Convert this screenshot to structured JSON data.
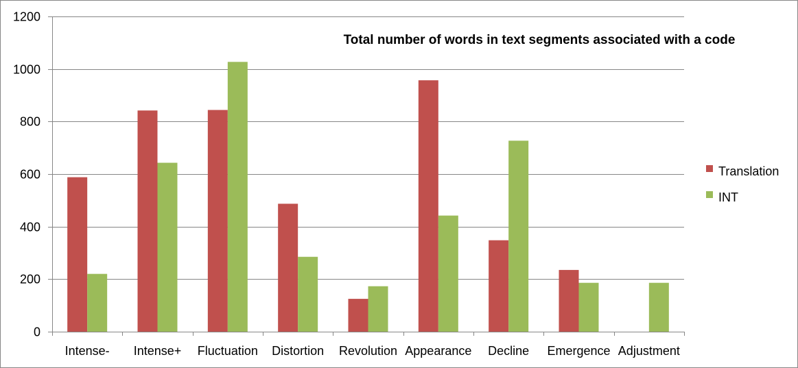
{
  "chart_data": {
    "type": "bar",
    "title": "Total number of words in text segments associated with a code",
    "xlabel": "",
    "ylabel": "",
    "categories": [
      "Intense-",
      "Intense+",
      "Fluctuation",
      "Distortion",
      "Revolution",
      "Appearance",
      "Decline",
      "Emergence",
      "Adjustment"
    ],
    "series": [
      {
        "name": "Translation",
        "color": "#c0504d",
        "values": [
          588,
          842,
          844,
          487,
          125,
          957,
          348,
          235,
          0
        ]
      },
      {
        "name": "INT",
        "color": "#9bbb59",
        "values": [
          220,
          643,
          1027,
          285,
          173,
          442,
          727,
          186,
          186
        ]
      }
    ],
    "ylim": [
      0,
      1200
    ],
    "yticks": [
      0,
      200,
      400,
      600,
      800,
      1000,
      1200
    ],
    "grid": true,
    "gridline_color": "#868686",
    "legend_position": "right"
  }
}
